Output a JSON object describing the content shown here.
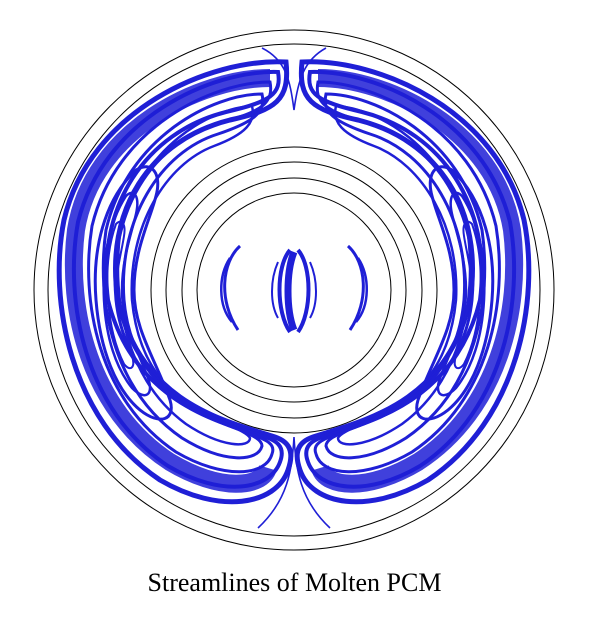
{
  "figure": {
    "caption": "Streamlines of Molten PCM",
    "colors": {
      "streamline": "#1f1fd6",
      "outline": "#000000",
      "background": "#ffffff"
    }
  }
}
